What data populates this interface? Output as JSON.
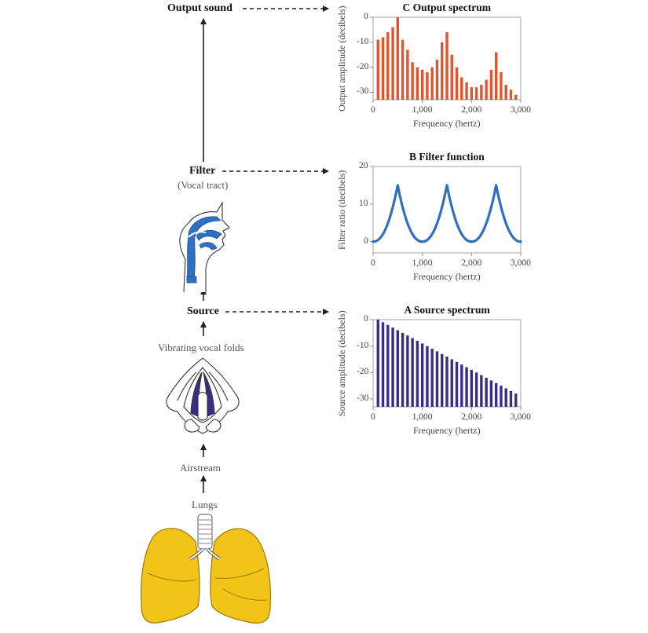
{
  "flow": {
    "output_sound": "Output sound",
    "filter": "Filter",
    "filter_sub": "(Vocal tract)",
    "source": "Source",
    "vibrating": "Vibrating vocal folds",
    "airstream": "Airstream",
    "lungs": "Lungs"
  },
  "colors": {
    "output": "#e0542e",
    "filter": "#2e6fc2",
    "source": "#3b2c86",
    "vocal_tract": "#2f6fc4",
    "lung": "#f2c318",
    "lung_edge": "#9a7a00",
    "arrow": "#222222"
  },
  "chart_data": [
    {
      "id": "output",
      "type": "bar",
      "title_letter": "C",
      "title": "Output spectrum",
      "xlabel": "Frequency (hertz)",
      "ylabel": "Output amplitude (decibels)",
      "xlim": [
        0,
        3000
      ],
      "ylim": [
        -33,
        0
      ],
      "xticks": [
        "0",
        "1,000",
        "2,000",
        "3,000"
      ],
      "xtick_values": [
        0,
        1000,
        2000,
        3000
      ],
      "yticks": [
        "0",
        "-10",
        "-20",
        "-30"
      ],
      "ytick_values": [
        0,
        -10,
        -20,
        -30
      ],
      "x": [
        100,
        200,
        300,
        400,
        500,
        600,
        700,
        800,
        900,
        1000,
        1100,
        1200,
        1300,
        1400,
        1500,
        1600,
        1700,
        1800,
        1900,
        2000,
        2100,
        2200,
        2300,
        2400,
        2500,
        2600,
        2700,
        2800,
        2900
      ],
      "values": [
        -9,
        -8,
        -6,
        -4,
        0,
        -9,
        -13,
        -18,
        -20,
        -21,
        -22,
        -20,
        -17,
        -10,
        -6,
        -15,
        -20,
        -24,
        -26,
        -28,
        -28,
        -27,
        -25,
        -21,
        -14,
        -22,
        -27,
        -29,
        -31
      ]
    },
    {
      "id": "filter",
      "type": "line",
      "title_letter": "B",
      "title": "Filter function",
      "xlabel": "Frequency (hertz)",
      "ylabel": "Filter ratio (decibels)",
      "xlim": [
        0,
        3000
      ],
      "ylim": [
        -3,
        20
      ],
      "xticks": [
        "0",
        "1,000",
        "2,000",
        "3,000"
      ],
      "xtick_values": [
        0,
        1000,
        2000,
        3000
      ],
      "yticks": [
        "20",
        "10",
        "0"
      ],
      "ytick_values": [
        20,
        10,
        0
      ],
      "peaks": [
        500,
        1500,
        2500
      ],
      "peak_value": 15,
      "trough_value": 0
    },
    {
      "id": "source",
      "type": "bar",
      "title_letter": "A",
      "title": "Source spectrum",
      "xlabel": "Frequency (hertz)",
      "ylabel": "Source amplitude (decibels)",
      "xlim": [
        0,
        3000
      ],
      "ylim": [
        -33,
        0
      ],
      "xticks": [
        "0",
        "1,000",
        "2,000",
        "3,000"
      ],
      "xtick_values": [
        0,
        1000,
        2000,
        3000
      ],
      "yticks": [
        "0",
        "-10",
        "-20",
        "-30"
      ],
      "ytick_values": [
        0,
        -10,
        -20,
        -30
      ],
      "x": [
        100,
        200,
        300,
        400,
        500,
        600,
        700,
        800,
        900,
        1000,
        1100,
        1200,
        1300,
        1400,
        1500,
        1600,
        1700,
        1800,
        1900,
        2000,
        2100,
        2200,
        2300,
        2400,
        2500,
        2600,
        2700,
        2800,
        2900
      ],
      "values": [
        0,
        -1,
        -2,
        -3,
        -4,
        -5,
        -6,
        -7,
        -8,
        -9,
        -10,
        -11,
        -12,
        -13,
        -14,
        -15,
        -16,
        -17,
        -18,
        -19,
        -20,
        -21,
        -22,
        -23,
        -24,
        -25,
        -26,
        -27,
        -28
      ]
    }
  ]
}
